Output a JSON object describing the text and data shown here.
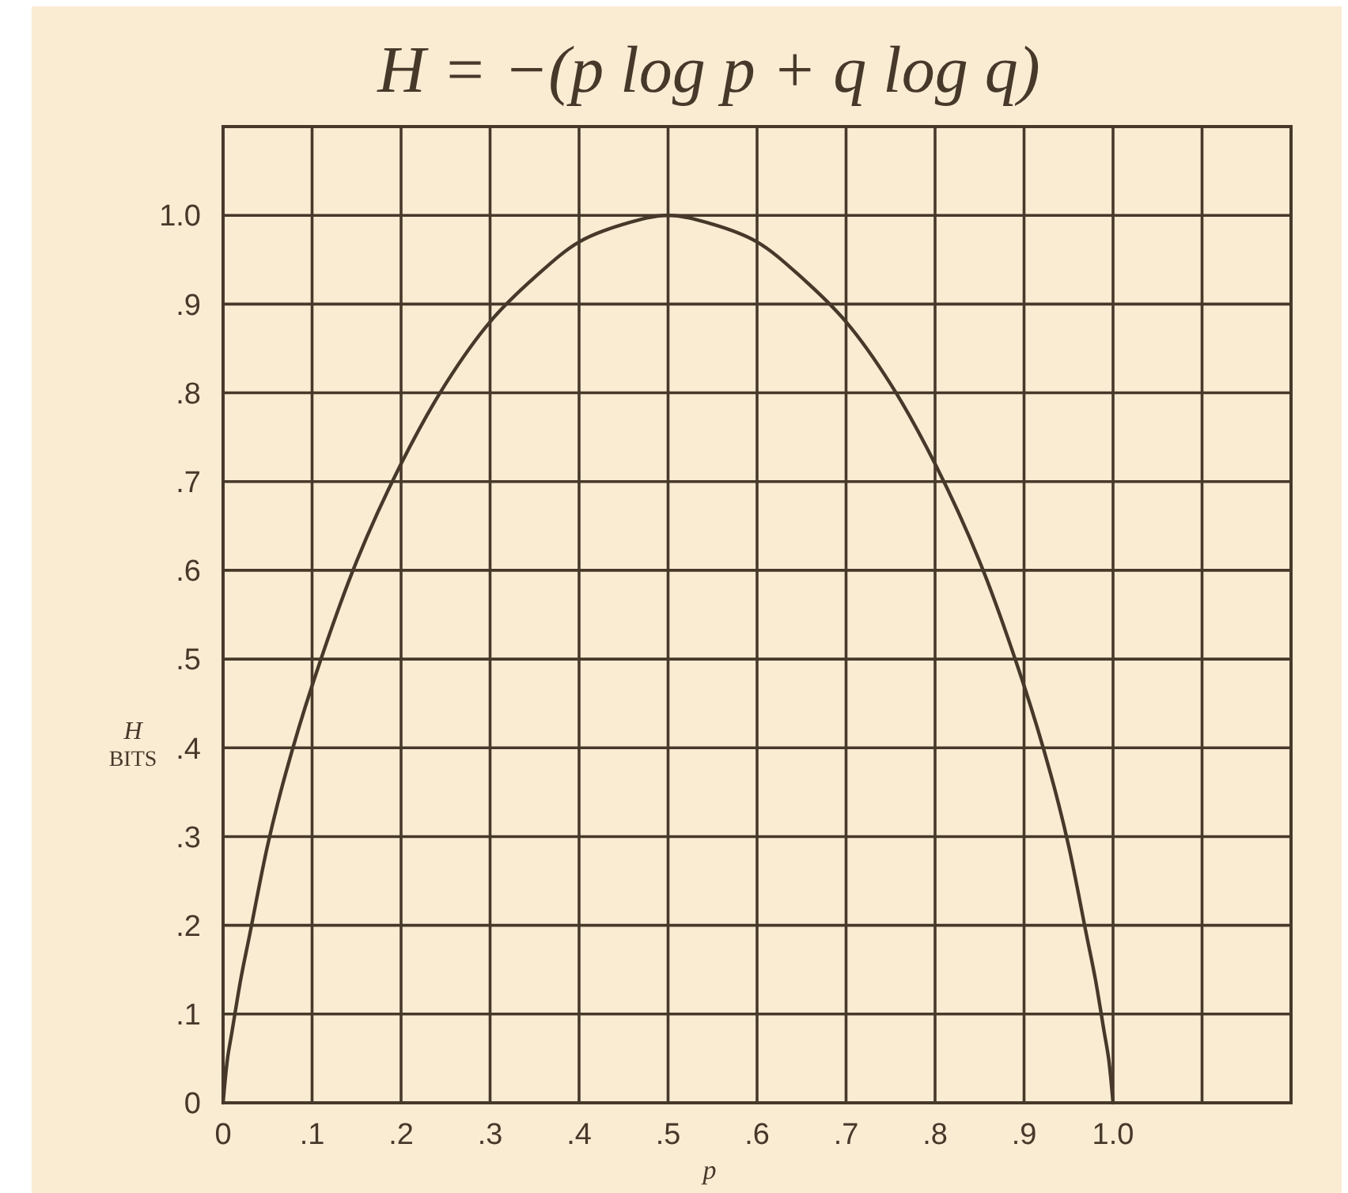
{
  "chart_data": {
    "type": "line",
    "title": "H = −(p log p + q log q)",
    "xlabel": "p",
    "ylabel": "H\nBITS",
    "x": [
      0,
      0.005,
      0.01,
      0.02,
      0.03,
      0.05,
      0.07,
      0.1,
      0.15,
      0.2,
      0.25,
      0.3,
      0.35,
      0.4,
      0.45,
      0.5,
      0.55,
      0.6,
      0.65,
      0.7,
      0.75,
      0.8,
      0.85,
      0.9,
      0.93,
      0.95,
      0.97,
      0.98,
      0.99,
      0.995,
      1
    ],
    "series": [
      {
        "color": "#46392a",
        "values": [
          0,
          0.05,
          0.08,
          0.14,
          0.19,
          0.29,
          0.37,
          0.47,
          0.61,
          0.72,
          0.81,
          0.88,
          0.93,
          0.97,
          0.99,
          1.0,
          0.99,
          0.97,
          0.93,
          0.88,
          0.81,
          0.72,
          0.61,
          0.47,
          0.37,
          0.29,
          0.19,
          0.14,
          0.08,
          0.05,
          0
        ]
      }
    ],
    "xlim": [
      0,
      1.2
    ],
    "ylim": [
      0,
      1.1
    ],
    "xticks": [
      0,
      {
        "value": 0.1,
        "label": ".1"
      },
      {
        "value": 0.2,
        "label": ".2"
      },
      {
        "value": 0.3,
        "label": ".3"
      },
      {
        "value": 0.4,
        "label": ".4"
      },
      {
        "value": 0.5,
        "label": ".5"
      },
      {
        "value": 0.6,
        "label": ".6"
      },
      {
        "value": 0.7,
        "label": ".7"
      },
      {
        "value": 0.8,
        "label": ".8"
      },
      {
        "value": 0.9,
        "label": ".9"
      },
      {
        "value": 1,
        "label": "1.0"
      },
      {
        "value": 1.1,
        "label": null
      }
    ],
    "yticks": [
      0,
      {
        "value": 0.1,
        "label": ".1"
      },
      {
        "value": 0.2,
        "label": ".2"
      },
      {
        "value": 0.3,
        "label": ".3"
      },
      {
        "value": 0.4,
        "label": ".4"
      },
      {
        "value": 0.5,
        "label": ".5"
      },
      {
        "value": 0.6,
        "label": ".6"
      },
      {
        "value": 0.7,
        "label": ".7"
      },
      {
        "value": 0.8,
        "label": ".8"
      },
      {
        "value": 0.9,
        "label": ".9"
      },
      {
        "value": 1,
        "label": "1.0"
      }
    ],
    "grid": true
  }
}
